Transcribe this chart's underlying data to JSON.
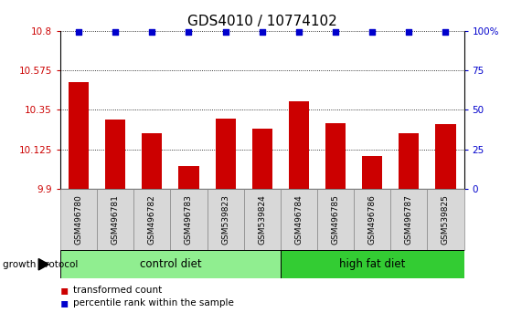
{
  "title": "GDS4010 / 10774102",
  "categories": [
    "GSM496780",
    "GSM496781",
    "GSM496782",
    "GSM496783",
    "GSM539823",
    "GSM539824",
    "GSM496784",
    "GSM496785",
    "GSM496786",
    "GSM496787",
    "GSM539825"
  ],
  "bar_values": [
    10.51,
    10.295,
    10.215,
    10.03,
    10.3,
    10.245,
    10.4,
    10.275,
    10.085,
    10.215,
    10.27
  ],
  "percentile_values": [
    99,
    99,
    99,
    99,
    99,
    99,
    99,
    99,
    99,
    99,
    99
  ],
  "bar_color": "#cc0000",
  "dot_color": "#0000cc",
  "ylim_left": [
    9.9,
    10.8
  ],
  "yticks_left": [
    9.9,
    10.125,
    10.35,
    10.575,
    10.8
  ],
  "ytick_labels_left": [
    "9.9",
    "10.125",
    "10.35",
    "10.575",
    "10.8"
  ],
  "yticks_right": [
    0,
    25,
    50,
    75,
    100
  ],
  "ytick_labels_right": [
    "0",
    "25",
    "50",
    "75",
    "100%"
  ],
  "grid_values": [
    10.125,
    10.35,
    10.575,
    10.8
  ],
  "n_control": 6,
  "n_highfat": 5,
  "control_label": "control diet",
  "high_fat_label": "high fat diet",
  "legend_bar_label": "transformed count",
  "legend_dot_label": "percentile rank within the sample",
  "growth_protocol_label": "growth protocol",
  "control_color_light": "#c8f5c8",
  "control_color_dark": "#90ee90",
  "high_fat_color": "#33cc33",
  "gray_box_color": "#d8d8d8",
  "tick_fontsize": 7.5,
  "label_fontsize": 6.5,
  "title_fontsize": 11,
  "legend_fontsize": 7.5,
  "group_fontsize": 8.5,
  "gp_fontsize": 7.5
}
